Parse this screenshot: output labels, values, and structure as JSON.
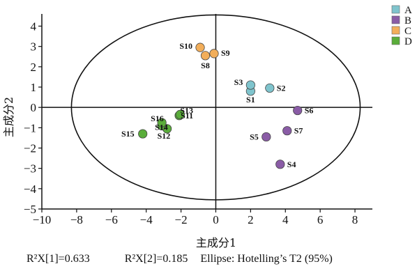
{
  "chart_data": {
    "type": "scatter",
    "xlabel": "主成分1",
    "ylabel": "主成分2",
    "xlim": [
      -10,
      9
    ],
    "ylim": [
      -5,
      4.6
    ],
    "xticks": [
      -10,
      -8,
      -6,
      -4,
      -2,
      0,
      2,
      4,
      6,
      8
    ],
    "yticks": [
      4,
      3,
      2,
      1,
      0,
      -1,
      -2,
      -3,
      -4,
      -5
    ],
    "legend_position": "top-right",
    "ellipse": {
      "center": [
        0,
        0
      ],
      "rx": 8.3,
      "ry": 4.55
    },
    "series": [
      {
        "name": "A",
        "color": "#7fc4cd",
        "points": [
          {
            "label": "S1",
            "x": 2.0,
            "y": 0.8
          },
          {
            "label": "S2",
            "x": 3.1,
            "y": 0.95
          },
          {
            "label": "S3",
            "x": 2.0,
            "y": 1.1
          }
        ]
      },
      {
        "name": "B",
        "color": "#8a5ca6",
        "points": [
          {
            "label": "S4",
            "x": 3.7,
            "y": -2.8
          },
          {
            "label": "S5",
            "x": 2.9,
            "y": -1.45
          },
          {
            "label": "S6",
            "x": 4.7,
            "y": -0.15
          },
          {
            "label": "S7",
            "x": 4.1,
            "y": -1.15
          }
        ]
      },
      {
        "name": "C",
        "color": "#f2ae5a",
        "points": [
          {
            "label": "S8",
            "x": -0.6,
            "y": 2.55
          },
          {
            "label": "S9",
            "x": -0.1,
            "y": 2.65
          },
          {
            "label": "S10",
            "x": -0.9,
            "y": 2.95
          }
        ]
      },
      {
        "name": "D",
        "color": "#5aad3a",
        "points": [
          {
            "label": "S11",
            "x": -2.1,
            "y": -0.4
          },
          {
            "label": "S12",
            "x": -2.8,
            "y": -1.05
          },
          {
            "label": "S13",
            "x": -2.05,
            "y": -0.35
          },
          {
            "label": "S14",
            "x": -3.1,
            "y": -0.9
          },
          {
            "label": "S15",
            "x": -4.2,
            "y": -1.3
          },
          {
            "label": "S16",
            "x": -3.1,
            "y": -0.75
          }
        ]
      }
    ]
  },
  "caption": {
    "r2x1": "R²X[1]=0.633",
    "r2x2": "R²X[2]=0.185",
    "ellipse": "Ellipse: Hotelling’s T2 (95%)"
  }
}
